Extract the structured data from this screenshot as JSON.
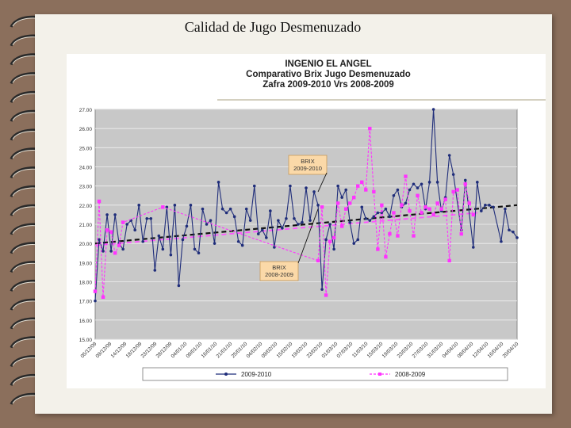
{
  "slide": {
    "title": "Calidad de Jugo Desmenuzado"
  },
  "chart_data": {
    "type": "line",
    "title_lines": [
      "INGENIO EL ANGEL",
      "Comparativo Brix Jugo Desmenuzado",
      "Zafra 2009-2010 Vrs 2008-2009"
    ],
    "xlabel": "",
    "ylabel": "",
    "ylim": [
      15.0,
      27.0
    ],
    "yticks": [
      "15.00",
      "16.00",
      "17.00",
      "18.00",
      "19.00",
      "20.00",
      "21.00",
      "22.00",
      "23.00",
      "24.00",
      "25.00",
      "26.00",
      "27.00"
    ],
    "xtick_labels": [
      "05/12/09",
      "09/12/09",
      "14/12/09",
      "18/12/09",
      "23/12/09",
      "28/12/09",
      "04/01/10",
      "09/01/10",
      "16/01/10",
      "21/01/10",
      "25/01/10",
      "04/02/10",
      "09/02/10",
      "15/02/10",
      "19/02/10",
      "23/02/10",
      "01/03/10",
      "07/03/10",
      "11/03/10",
      "15/03/10",
      "19/03/10",
      "23/03/10",
      "27/03/10",
      "31/03/10",
      "04/04/10",
      "08/04/10",
      "12/04/10",
      "16/04/10",
      "20/04/10"
    ],
    "series": [
      {
        "name": "2009-2010",
        "color": "#1f2d7a",
        "points": [
          [
            0,
            17.0
          ],
          [
            0.5,
            20.2
          ],
          [
            1,
            19.6
          ],
          [
            1.5,
            21.5
          ],
          [
            2,
            19.6
          ],
          [
            2.5,
            21.5
          ],
          [
            3,
            20.0
          ],
          [
            3.5,
            19.7
          ],
          [
            4,
            21.0
          ],
          [
            4.5,
            21.2
          ],
          [
            5,
            20.7
          ],
          [
            5.5,
            22.0
          ],
          [
            6,
            20.1
          ],
          [
            6.5,
            21.3
          ],
          [
            7,
            21.3
          ],
          [
            7.5,
            18.6
          ],
          [
            8,
            20.4
          ],
          [
            8.5,
            19.7
          ],
          [
            9,
            21.9
          ],
          [
            9.5,
            19.4
          ],
          [
            10,
            22.0
          ],
          [
            10.5,
            17.8
          ],
          [
            11,
            20.2
          ],
          [
            11.5,
            20.9
          ],
          [
            12,
            22.0
          ],
          [
            12.5,
            19.7
          ],
          [
            13,
            19.5
          ],
          [
            13.5,
            21.8
          ],
          [
            14,
            21.0
          ],
          [
            14.5,
            21.2
          ],
          [
            15,
            20.0
          ],
          [
            15.5,
            23.2
          ],
          [
            16,
            21.8
          ],
          [
            16.5,
            21.6
          ],
          [
            17,
            21.8
          ],
          [
            17.5,
            21.4
          ],
          [
            18,
            20.1
          ],
          [
            18.5,
            19.9
          ],
          [
            19,
            21.8
          ],
          [
            19.5,
            21.2
          ],
          [
            20,
            23.0
          ],
          [
            20.5,
            20.5
          ],
          [
            21,
            20.7
          ],
          [
            21.5,
            20.3
          ],
          [
            22,
            21.7
          ],
          [
            22.5,
            19.8
          ],
          [
            23,
            21.2
          ],
          [
            23.5,
            20.8
          ],
          [
            24,
            21.3
          ],
          [
            24.5,
            23.0
          ],
          [
            25,
            21.3
          ],
          [
            25.5,
            21.0
          ],
          [
            26,
            21.1
          ],
          [
            26.5,
            22.9
          ],
          [
            27,
            21.2
          ],
          [
            27.5,
            22.7
          ],
          [
            28,
            22.0
          ],
          [
            28.5,
            17.6
          ],
          [
            29,
            20.2
          ],
          [
            29.5,
            21.0
          ],
          [
            30,
            19.7
          ],
          [
            30.5,
            23.0
          ],
          [
            31,
            22.4
          ],
          [
            31.5,
            22.8
          ],
          [
            32,
            21.1
          ],
          [
            32.5,
            20.0
          ],
          [
            33,
            20.2
          ],
          [
            33.5,
            21.9
          ],
          [
            34,
            21.3
          ],
          [
            34.5,
            21.2
          ],
          [
            35,
            21.4
          ],
          [
            35.5,
            21.6
          ],
          [
            36,
            21.6
          ],
          [
            36.5,
            21.8
          ],
          [
            37,
            21.4
          ],
          [
            37.5,
            22.5
          ],
          [
            38,
            22.8
          ],
          [
            38.5,
            21.9
          ],
          [
            39,
            22.1
          ],
          [
            39.5,
            22.8
          ],
          [
            40,
            23.1
          ],
          [
            40.5,
            22.9
          ],
          [
            41,
            23.1
          ],
          [
            41.5,
            21.8
          ],
          [
            42,
            23.2
          ],
          [
            42.5,
            27.0
          ],
          [
            43,
            23.2
          ],
          [
            43.5,
            21.7
          ],
          [
            44,
            22.4
          ],
          [
            44.5,
            24.6
          ],
          [
            45,
            23.6
          ],
          [
            46,
            20.7
          ],
          [
            46.5,
            23.3
          ],
          [
            47.5,
            19.8
          ],
          [
            48,
            23.2
          ],
          [
            48.5,
            21.7
          ],
          [
            49,
            22.0
          ],
          [
            49.5,
            22.0
          ],
          [
            50,
            21.9
          ],
          [
            51,
            20.1
          ],
          [
            51.5,
            21.8
          ],
          [
            52,
            20.7
          ],
          [
            52.5,
            20.6
          ],
          [
            53,
            20.3
          ]
        ]
      },
      {
        "name": "2008-2009",
        "color": "#ff33ff",
        "points": [
          [
            0,
            17.5
          ],
          [
            0.5,
            22.2
          ],
          [
            1,
            17.2
          ],
          [
            1.5,
            20.7
          ],
          [
            2,
            20.6
          ],
          [
            2.5,
            19.5
          ],
          [
            3,
            19.9
          ],
          [
            3.5,
            21.1
          ],
          [
            8.5,
            21.9
          ],
          [
            28,
            19.1
          ],
          [
            28.5,
            21.9
          ],
          [
            29,
            17.3
          ],
          [
            29.5,
            20.1
          ],
          [
            30,
            20.3
          ],
          [
            30.5,
            22.1
          ],
          [
            31,
            20.9
          ],
          [
            31.5,
            21.8
          ],
          [
            32,
            22.1
          ],
          [
            32.5,
            22.4
          ],
          [
            33,
            23.0
          ],
          [
            33.5,
            23.2
          ],
          [
            34,
            22.8
          ],
          [
            34.5,
            26.0
          ],
          [
            35,
            22.7
          ],
          [
            35.5,
            19.7
          ],
          [
            36,
            22.0
          ],
          [
            36.5,
            19.3
          ],
          [
            37,
            20.5
          ],
          [
            37.5,
            21.6
          ],
          [
            38,
            20.4
          ],
          [
            38.5,
            22.0
          ],
          [
            39,
            23.5
          ],
          [
            39.5,
            21.7
          ],
          [
            40,
            20.4
          ],
          [
            40.5,
            22.5
          ],
          [
            41,
            21.6
          ],
          [
            41.5,
            21.9
          ],
          [
            42,
            21.8
          ],
          [
            42.5,
            21.5
          ],
          [
            43,
            22.1
          ],
          [
            43.5,
            21.8
          ],
          [
            44,
            22.3
          ],
          [
            44.5,
            19.1
          ],
          [
            45,
            22.7
          ],
          [
            45.5,
            22.8
          ],
          [
            46,
            20.5
          ],
          [
            46.5,
            23.1
          ],
          [
            47,
            22.1
          ],
          [
            47.5,
            21.5
          ]
        ]
      }
    ],
    "trendlines": [
      {
        "name": "2009-2010 trend",
        "from": [
          0,
          20.0
        ],
        "to": [
          53,
          22.0
        ],
        "color": "#111111"
      },
      {
        "name": "2008-2009 trend",
        "from": [
          0,
          19.9
        ],
        "to": [
          48,
          21.6
        ],
        "color": "#ff55ff"
      }
    ],
    "annotations": [
      {
        "text_lines": [
          "BRIX",
          "2009-2010"
        ],
        "target": [
          28,
          22.7
        ]
      },
      {
        "text_lines": [
          "BRIX",
          "2008-2009"
        ],
        "target": [
          28,
          21.8
        ]
      }
    ],
    "legend": {
      "position": "bottom",
      "entries": [
        "2009-2010",
        "2008-2009"
      ]
    },
    "x_max_index": 53
  }
}
